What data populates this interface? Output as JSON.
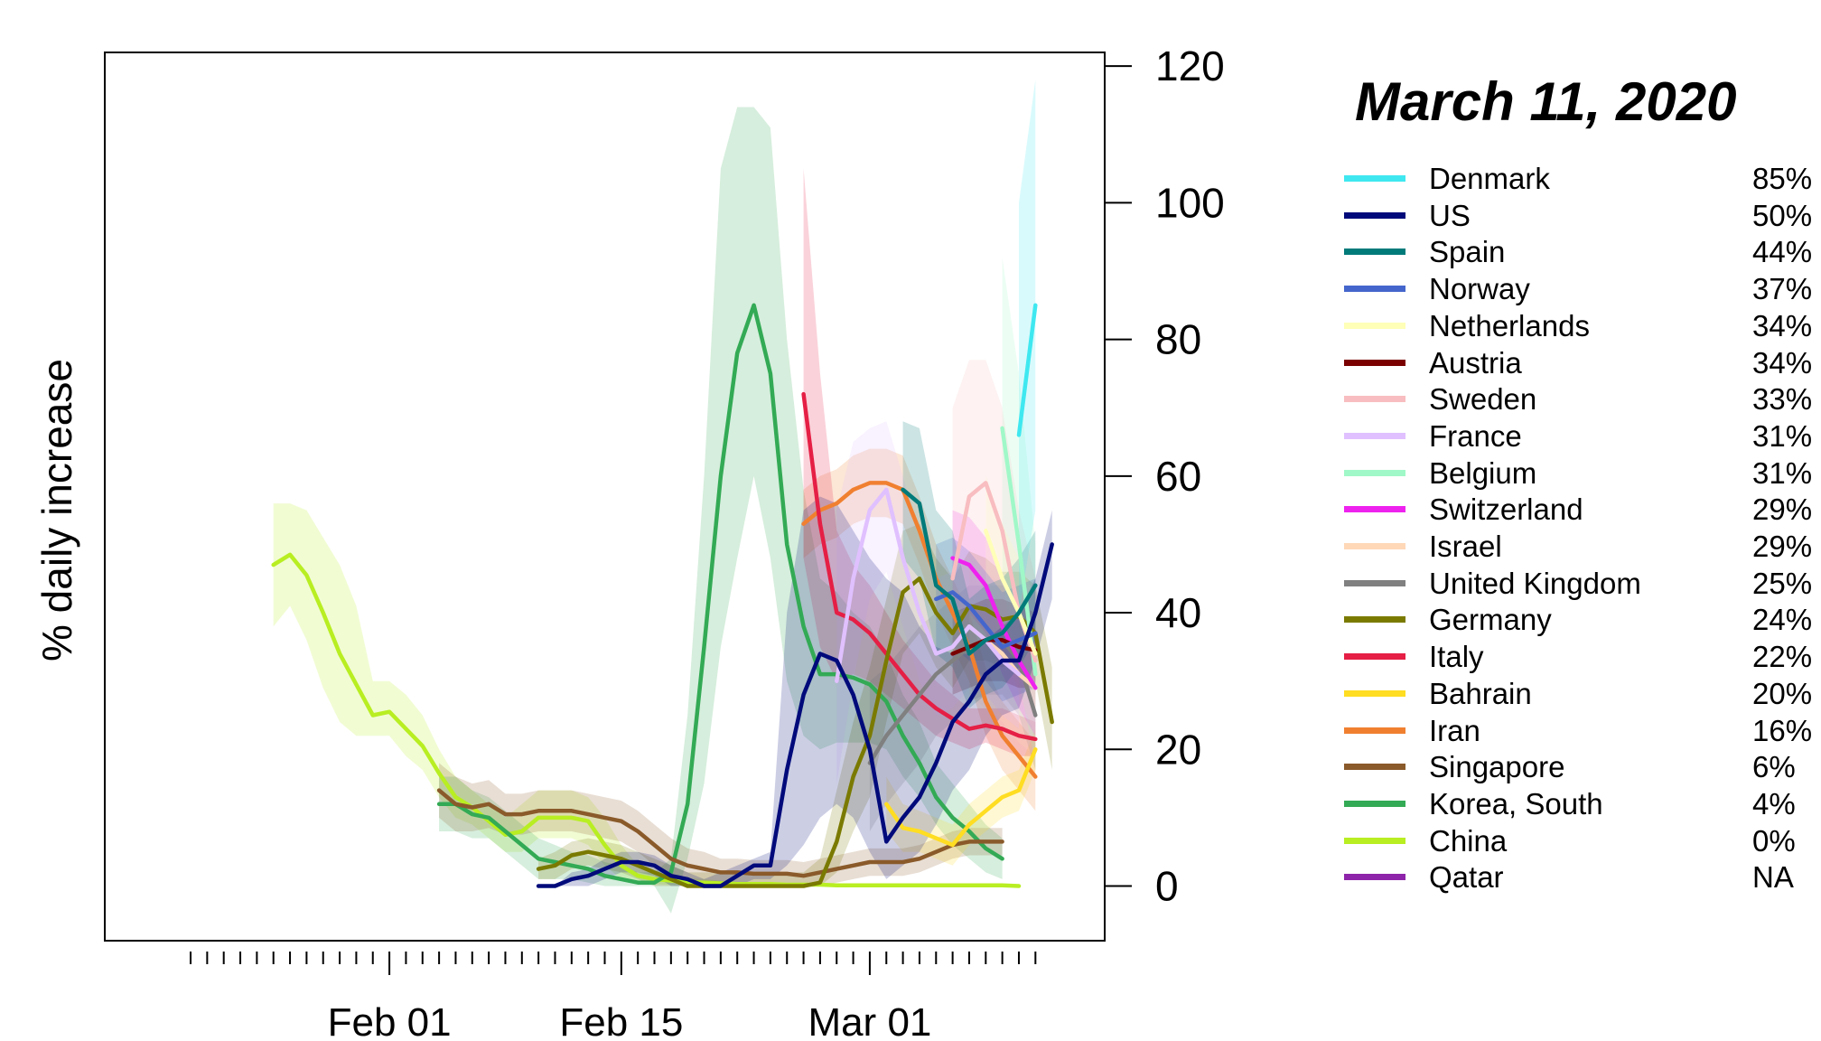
{
  "chart_data": {
    "type": "line",
    "title": "March 11, 2020",
    "ylabel": "% daily increase",
    "xlabel": "",
    "ylim": [
      -8,
      122
    ],
    "yticks": [
      0,
      20,
      40,
      60,
      80,
      100,
      120
    ],
    "xlim": [
      "2020-01-17",
      "2020-03-13"
    ],
    "xtick_labels": [
      {
        "date": "2020-02-01",
        "label": "Feb 01"
      },
      {
        "date": "2020-02-15",
        "label": "Feb 15"
      },
      {
        "date": "2020-03-01",
        "label": "Mar 01"
      }
    ],
    "grid": false,
    "legend_position": "right",
    "series": [
      {
        "name": "Denmark",
        "value_label": "85%",
        "color": "#3FE8F0",
        "start": "2020-03-10",
        "values": [
          66,
          85
        ],
        "upper": [
          100,
          118
        ],
        "lower": [
          40,
          55
        ]
      },
      {
        "name": "US",
        "value_label": "50%",
        "color": "#000A7A",
        "start": "2020-02-10",
        "values": [
          0,
          0,
          1,
          1.5,
          2.5,
          3.5,
          3.5,
          3,
          1.5,
          1,
          0,
          0,
          1.5,
          3,
          3,
          17,
          28,
          34,
          33,
          28,
          20,
          6.5,
          10,
          13,
          18,
          24,
          27,
          31,
          33,
          33,
          40,
          50
        ],
        "upper": [
          0,
          0,
          2,
          2.5,
          4,
          5,
          5,
          4.5,
          3,
          2,
          1,
          2,
          3,
          4,
          5,
          40,
          55,
          57,
          56,
          52,
          48,
          45,
          43,
          38,
          35,
          34,
          34,
          36,
          38,
          40,
          45,
          55
        ],
        "lower": [
          0,
          0,
          0,
          0,
          1,
          2,
          2,
          1.5,
          0,
          0,
          0,
          0,
          0,
          1,
          1,
          3,
          6,
          10,
          12,
          10,
          5,
          1,
          3,
          5,
          9,
          14,
          17,
          22,
          25,
          26,
          33,
          42
        ]
      },
      {
        "name": "Spain",
        "value_label": "44%",
        "color": "#017A7A",
        "start": "2020-03-03",
        "values": [
          58,
          56,
          44,
          42,
          34,
          36,
          37,
          40,
          44
        ],
        "upper": [
          68,
          67,
          55,
          52,
          42,
          44,
          45,
          48,
          52
        ],
        "lower": [
          48,
          45,
          34,
          32,
          26,
          28,
          29,
          32,
          36
        ]
      },
      {
        "name": "Norway",
        "value_label": "37%",
        "color": "#4466CC",
        "start": "2020-03-05",
        "values": [
          42,
          43,
          41,
          38,
          35,
          36,
          37
        ],
        "upper": [
          50,
          51,
          49,
          46,
          43,
          44,
          45
        ],
        "lower": [
          34,
          35,
          33,
          30,
          27,
          28,
          29
        ]
      },
      {
        "name": "Netherlands",
        "value_label": "34%",
        "color": "#FFFFB8",
        "start": "2020-03-08",
        "values": [
          52,
          45,
          40,
          34
        ],
        "upper": [
          60,
          53,
          48,
          42
        ],
        "lower": [
          44,
          37,
          32,
          26
        ]
      },
      {
        "name": "Austria",
        "value_label": "34%",
        "color": "#7A0000",
        "start": "2020-03-06",
        "values": [
          34,
          35,
          36,
          36,
          35,
          34.5
        ],
        "upper": [
          40,
          41,
          42,
          42,
          41,
          40
        ],
        "lower": [
          28,
          29,
          30,
          30,
          29,
          29
        ]
      },
      {
        "name": "Sweden",
        "value_label": "33%",
        "color": "#F8BDC0",
        "start": "2020-03-06",
        "values": [
          45,
          57,
          59,
          52,
          40,
          33
        ],
        "upper": [
          70,
          77,
          77,
          70,
          55,
          45
        ],
        "lower": [
          30,
          38,
          42,
          36,
          28,
          22
        ]
      },
      {
        "name": "France",
        "value_label": "31%",
        "color": "#E0C0FF",
        "start": "2020-02-28",
        "values": [
          30,
          45,
          55,
          58,
          48,
          40,
          34,
          35,
          38,
          36,
          33,
          31
        ],
        "upper": [
          55,
          65,
          67,
          68,
          60,
          52,
          45,
          46,
          48,
          46,
          43,
          40
        ],
        "lower": [
          15,
          30,
          42,
          46,
          38,
          30,
          25,
          26,
          29,
          28,
          25,
          23
        ]
      },
      {
        "name": "Belgium",
        "value_label": "31%",
        "color": "#A0F8C8",
        "start": "2020-03-09",
        "values": [
          67,
          50,
          31
        ],
        "upper": [
          92,
          75,
          50
        ],
        "lower": [
          45,
          30,
          18
        ]
      },
      {
        "name": "Switzerland",
        "value_label": "29%",
        "color": "#EE22EE",
        "start": "2020-03-06",
        "values": [
          48,
          47,
          44,
          38,
          33,
          29
        ],
        "upper": [
          55,
          54,
          51,
          45,
          40,
          36
        ],
        "lower": [
          41,
          40,
          37,
          31,
          26,
          22
        ]
      },
      {
        "name": "Israel",
        "value_label": "29%",
        "color": "#FFD8B8",
        "start": "2020-03-07",
        "values": [
          38,
          36,
          34,
          31,
          29
        ],
        "upper": [
          48,
          46,
          44,
          41,
          39
        ],
        "lower": [
          28,
          26,
          24,
          21,
          19
        ]
      },
      {
        "name": "United Kingdom",
        "value_label": "25%",
        "color": "#808080",
        "start": "2020-03-01",
        "values": [
          18,
          22,
          25,
          28,
          31,
          33,
          35,
          36,
          36,
          33,
          25
        ],
        "upper": [
          30,
          32,
          35,
          38,
          40,
          42,
          44,
          44,
          44,
          41,
          33
        ],
        "lower": [
          8,
          12,
          15,
          18,
          22,
          24,
          27,
          28,
          28,
          25,
          17
        ]
      },
      {
        "name": "Germany",
        "value_label": "24%",
        "color": "#7A7A00",
        "start": "2020-02-10",
        "values": [
          2.5,
          3,
          4.5,
          5,
          4.5,
          4,
          3,
          2,
          1,
          0,
          0,
          0,
          0,
          0,
          0,
          0,
          0,
          0.5,
          6.5,
          16,
          22,
          33,
          43,
          45,
          40,
          37,
          41,
          40.5,
          39,
          39.5,
          37,
          24
        ],
        "upper": [
          4,
          5,
          6.5,
          7,
          6.5,
          6,
          5,
          4,
          3,
          2,
          2,
          2,
          2,
          2,
          2,
          2,
          2,
          4,
          14,
          24,
          32,
          42,
          52,
          53,
          48,
          45,
          49,
          48,
          46,
          46,
          44,
          32
        ],
        "lower": [
          1,
          1,
          2.5,
          3,
          2.5,
          2,
          1,
          0,
          0,
          0,
          0,
          0,
          0,
          0,
          0,
          0,
          0,
          0,
          2,
          8,
          13,
          24,
          34,
          37,
          32,
          29,
          33,
          33,
          32,
          33,
          30,
          17
        ]
      },
      {
        "name": "Italy",
        "value_label": "22%",
        "color": "#E51F45",
        "start": "2020-02-26",
        "values": [
          72,
          53,
          40,
          39,
          37,
          34,
          31,
          28,
          26,
          24.5,
          23,
          23.5,
          23,
          22,
          21.5
        ],
        "upper": [
          105,
          75,
          52,
          47,
          44,
          40,
          36,
          33,
          30,
          28,
          26,
          26,
          26,
          25,
          24
        ],
        "lower": [
          48,
          35,
          30,
          31,
          30,
          28,
          26,
          24,
          22,
          21,
          20,
          21,
          20,
          19,
          19
        ]
      },
      {
        "name": "Bahrain",
        "value_label": "20%",
        "color": "#FFDD22",
        "start": "2020-03-02",
        "values": [
          12,
          8.5,
          8,
          7,
          6,
          9,
          11,
          13,
          14,
          20
        ],
        "upper": [
          16,
          12,
          11,
          10,
          9,
          12,
          14,
          16,
          17,
          23
        ],
        "lower": [
          8,
          5,
          5,
          4,
          3,
          6,
          8,
          10,
          11,
          17
        ]
      },
      {
        "name": "Iran",
        "value_label": "16%",
        "color": "#F08030",
        "start": "2020-02-26",
        "values": [
          53,
          55,
          56,
          58,
          59,
          59,
          58,
          52,
          45,
          40,
          35,
          27,
          22,
          19,
          16
        ],
        "upper": [
          58,
          60,
          61,
          63,
          64,
          64,
          63,
          57,
          50,
          45,
          40,
          32,
          27,
          24,
          21
        ],
        "lower": [
          48,
          50,
          51,
          53,
          54,
          54,
          53,
          47,
          40,
          35,
          30,
          22,
          17,
          14,
          11
        ]
      },
      {
        "name": "Singapore",
        "value_label": "6%",
        "color": "#8A5A2A",
        "start": "2020-02-04",
        "values": [
          14,
          12,
          11.5,
          12,
          10.5,
          10.5,
          11,
          11,
          11,
          10.5,
          10,
          9.5,
          8,
          6,
          4,
          3,
          2.5,
          2,
          2,
          1.8,
          1.8,
          1.8,
          1.5,
          2,
          2.5,
          3,
          3.5,
          3.5,
          3.5,
          4,
          5,
          6,
          6.5,
          6.5,
          6.5
        ],
        "upper": [
          18,
          16,
          15,
          15.5,
          13.5,
          13.5,
          14,
          14,
          14,
          13.5,
          13,
          12.5,
          11,
          9,
          7,
          5.5,
          5,
          4,
          4,
          3.8,
          3.8,
          3.8,
          3.5,
          4,
          4.5,
          5,
          5.5,
          5.5,
          5.5,
          6,
          7,
          8,
          8.5,
          8.5,
          8.5
        ],
        "lower": [
          10,
          8,
          8,
          8.5,
          7.5,
          7.5,
          8,
          8,
          8,
          7.5,
          7,
          6.5,
          5,
          3,
          1.5,
          0.5,
          0,
          0,
          0,
          0,
          0,
          0,
          0,
          0,
          0.5,
          1,
          1.5,
          1.5,
          1.5,
          2,
          3,
          4,
          4.5,
          4.5,
          4.5
        ]
      },
      {
        "name": "Korea, South",
        "value_label": "4%",
        "color": "#33AA55",
        "start": "2020-02-04",
        "values": [
          12,
          12,
          10.5,
          10,
          8,
          6,
          4,
          3.5,
          3,
          2.5,
          1.5,
          1,
          0.5,
          0.5,
          2,
          12,
          35,
          60,
          78,
          85,
          75,
          50,
          38,
          31,
          31,
          30.5,
          29.5,
          27,
          22,
          18,
          13,
          10,
          8,
          5.5,
          4
        ],
        "upper": [
          16,
          16,
          14,
          13,
          11,
          9,
          7,
          6,
          5,
          4.5,
          3.5,
          3,
          2,
          2,
          4,
          25,
          60,
          105,
          114,
          114,
          111,
          80,
          58,
          45,
          43,
          40,
          38,
          34,
          28,
          24,
          18,
          15,
          12,
          9,
          7
        ],
        "lower": [
          8,
          8,
          7,
          7,
          5,
          3,
          1,
          1,
          1,
          0.5,
          0,
          0,
          0,
          0,
          -4,
          4,
          15,
          35,
          48,
          60,
          48,
          30,
          22,
          20,
          21,
          21,
          21,
          20,
          16,
          13,
          9,
          6,
          4,
          2,
          1
        ]
      },
      {
        "name": "China",
        "value_label": "0%",
        "color": "#B8EE22",
        "start": "2020-01-25",
        "values": [
          47,
          48.5,
          45.5,
          40,
          34,
          29.5,
          25,
          25.5,
          23,
          20.5,
          16.5,
          13,
          11.5,
          9.5,
          7.5,
          8,
          10,
          10,
          10,
          9.5,
          6,
          3,
          1.5,
          1,
          0.8,
          0.6,
          0.5,
          0.4,
          0.3,
          0.3,
          0.3,
          0.2,
          0.2,
          0.2,
          0.1,
          0.1,
          0.1,
          0.1,
          0.1,
          0.1,
          0.1,
          0.1,
          0.1,
          0.1,
          0.1,
          0
        ],
        "upper": [
          56,
          56,
          55,
          51,
          47,
          41,
          30,
          30,
          28,
          25,
          20,
          16,
          14,
          12,
          10,
          12,
          14,
          14,
          14,
          13,
          10,
          6,
          3,
          2,
          1.5,
          1.2,
          1,
          0.8,
          0.6,
          0.6,
          0.6,
          0.4,
          0.4,
          0.4,
          0.3,
          0.3,
          0.3,
          0.3,
          0.3,
          0.3,
          0.3,
          0.3,
          0.3,
          0.3,
          0.3,
          0.2
        ],
        "lower": [
          38,
          41,
          36,
          29,
          24,
          22,
          22,
          22,
          19,
          17,
          13,
          10,
          9,
          7,
          5,
          5,
          7,
          7,
          7,
          6,
          3,
          1,
          0.5,
          0.3,
          0.2,
          0.1,
          0.1,
          0.1,
          0,
          0,
          0,
          0,
          0,
          0,
          0,
          0,
          0,
          0,
          0,
          0,
          0,
          0,
          0,
          0,
          0,
          0
        ]
      },
      {
        "name": "Qatar",
        "value_label": "NA",
        "color": "#8E24AA",
        "start": "2020-03-11",
        "values": [],
        "upper": [],
        "lower": []
      }
    ]
  }
}
